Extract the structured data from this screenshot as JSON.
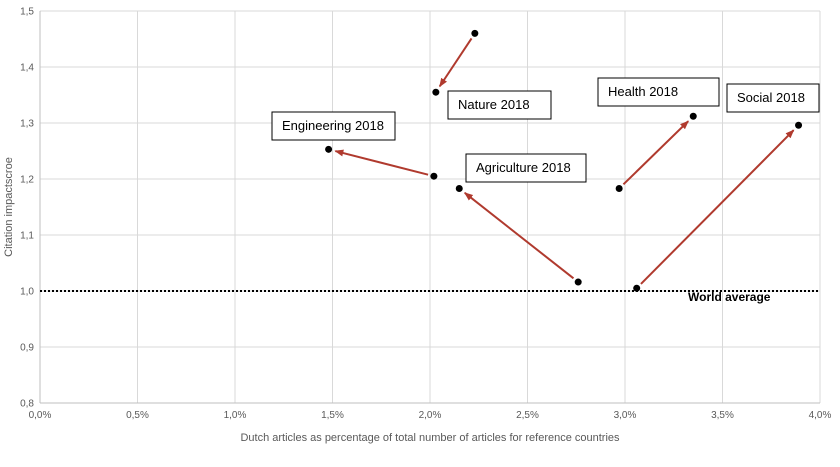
{
  "chart_data": {
    "type": "scatter",
    "xlabel": "Dutch articles as percentage of total number of articles for reference countries",
    "ylabel": "Citation impactscroe",
    "xlim": [
      0.0,
      4.0
    ],
    "ylim": [
      0.8,
      1.5
    ],
    "x_ticks": [
      {
        "value": 0.0,
        "label": "0,0%"
      },
      {
        "value": 0.5,
        "label": "0,5%"
      },
      {
        "value": 1.0,
        "label": "1,0%"
      },
      {
        "value": 1.5,
        "label": "1,5%"
      },
      {
        "value": 2.0,
        "label": "2,0%"
      },
      {
        "value": 2.5,
        "label": "2,5%"
      },
      {
        "value": 3.0,
        "label": "3,0%"
      },
      {
        "value": 3.5,
        "label": "3,5%"
      },
      {
        "value": 4.0,
        "label": "4,0%"
      }
    ],
    "y_ticks": [
      {
        "value": 0.8,
        "label": "0,8"
      },
      {
        "value": 0.9,
        "label": "0,9"
      },
      {
        "value": 1.0,
        "label": "1,0"
      },
      {
        "value": 1.1,
        "label": "1,1"
      },
      {
        "value": 1.2,
        "label": "1,2"
      },
      {
        "value": 1.3,
        "label": "1,3"
      },
      {
        "value": 1.4,
        "label": "1,4"
      },
      {
        "value": 1.5,
        "label": "1,5"
      }
    ],
    "grid": "vertical-and-horizontal",
    "reference_line": {
      "y": 1.0,
      "label": "World average"
    },
    "fields": [
      {
        "id": "nature",
        "label": "Nature 2018",
        "from": {
          "x": 2.23,
          "y": 1.46
        },
        "to": {
          "x": 2.03,
          "y": 1.355
        }
      },
      {
        "id": "engineering",
        "label": "Engineering 2018",
        "from": {
          "x": 2.02,
          "y": 1.205
        },
        "to": {
          "x": 1.48,
          "y": 1.253
        }
      },
      {
        "id": "agriculture",
        "label": "Agriculture 2018",
        "from": {
          "x": 2.76,
          "y": 1.016
        },
        "to": {
          "x": 2.15,
          "y": 1.183
        }
      },
      {
        "id": "health",
        "label": "Health 2018",
        "from": {
          "x": 2.97,
          "y": 1.183
        },
        "to": {
          "x": 3.35,
          "y": 1.312
        }
      },
      {
        "id": "social",
        "label": "Social 2018",
        "from": {
          "x": 3.06,
          "y": 1.005
        },
        "to": {
          "x": 3.89,
          "y": 1.296
        }
      }
    ],
    "colors": {
      "arrow": "#b03a2e",
      "point": "#000000",
      "grid": "#d9d9d9",
      "axis": "#bfbfbf"
    }
  }
}
